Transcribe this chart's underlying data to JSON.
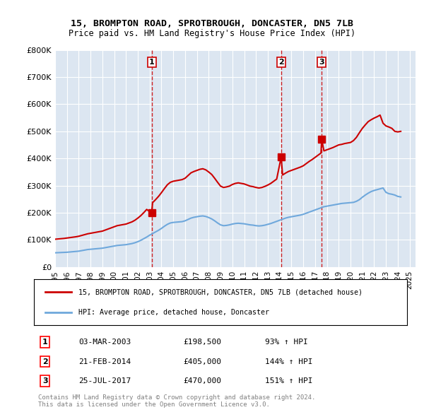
{
  "title_line1": "15, BROMPTON ROAD, SPROTBROUGH, DONCASTER, DN5 7LB",
  "title_line2": "Price paid vs. HM Land Registry's House Price Index (HPI)",
  "background_color": "#dce6f1",
  "plot_bg_color": "#dce6f1",
  "ylim": [
    0,
    800000
  ],
  "yticks": [
    0,
    100000,
    200000,
    300000,
    400000,
    500000,
    600000,
    700000,
    800000
  ],
  "ytick_labels": [
    "£0",
    "£100K",
    "£200K",
    "£300K",
    "£400K",
    "£500K",
    "£600K",
    "£700K",
    "£800K"
  ],
  "hpi_color": "#6fa8dc",
  "sale_color": "#cc0000",
  "dashed_line_color": "#cc0000",
  "transaction_markers": [
    {
      "label": "1",
      "date_str": "03-MAR-2003",
      "price": 198500,
      "pct": "93%",
      "x": 2003.17
    },
    {
      "label": "2",
      "date_str": "21-FEB-2014",
      "price": 405000,
      "pct": "144%",
      "x": 2014.13
    },
    {
      "label": "3",
      "date_str": "25-JUL-2017",
      "price": 470000,
      "pct": "151%",
      "x": 2017.56
    }
  ],
  "legend_line1": "15, BROMPTON ROAD, SPROTBROUGH, DONCASTER, DN5 7LB (detached house)",
  "legend_line2": "HPI: Average price, detached house, Doncaster",
  "footnote1": "Contains HM Land Registry data © Crown copyright and database right 2024.",
  "footnote2": "This data is licensed under the Open Government Licence v3.0.",
  "hpi_data_x": [
    1995,
    1995.25,
    1995.5,
    1995.75,
    1996,
    1996.25,
    1996.5,
    1996.75,
    1997,
    1997.25,
    1997.5,
    1997.75,
    1998,
    1998.25,
    1998.5,
    1998.75,
    1999,
    1999.25,
    1999.5,
    1999.75,
    2000,
    2000.25,
    2000.5,
    2000.75,
    2001,
    2001.25,
    2001.5,
    2001.75,
    2002,
    2002.25,
    2002.5,
    2002.75,
    2003,
    2003.25,
    2003.5,
    2003.75,
    2004,
    2004.25,
    2004.5,
    2004.75,
    2005,
    2005.25,
    2005.5,
    2005.75,
    2006,
    2006.25,
    2006.5,
    2006.75,
    2007,
    2007.25,
    2007.5,
    2007.75,
    2008,
    2008.25,
    2008.5,
    2008.75,
    2009,
    2009.25,
    2009.5,
    2009.75,
    2010,
    2010.25,
    2010.5,
    2010.75,
    2011,
    2011.25,
    2011.5,
    2011.75,
    2012,
    2012.25,
    2012.5,
    2012.75,
    2013,
    2013.25,
    2013.5,
    2013.75,
    2014,
    2014.25,
    2014.5,
    2014.75,
    2015,
    2015.25,
    2015.5,
    2015.75,
    2016,
    2016.25,
    2016.5,
    2016.75,
    2017,
    2017.25,
    2017.5,
    2017.75,
    2018,
    2018.25,
    2018.5,
    2018.75,
    2019,
    2019.25,
    2019.5,
    2019.75,
    2020,
    2020.25,
    2020.5,
    2020.75,
    2021,
    2021.25,
    2021.5,
    2021.75,
    2022,
    2022.25,
    2022.5,
    2022.75,
    2023,
    2023.25,
    2023.5,
    2023.75,
    2024,
    2024.25
  ],
  "hpi_data_y": [
    52000,
    52500,
    53000,
    53500,
    54000,
    55000,
    56000,
    57000,
    58000,
    60000,
    62000,
    64000,
    65000,
    66000,
    67000,
    68000,
    69000,
    71000,
    73000,
    75000,
    77000,
    79000,
    80000,
    81000,
    82000,
    84000,
    86000,
    89000,
    93000,
    98000,
    104000,
    110000,
    117000,
    123000,
    129000,
    135000,
    142000,
    150000,
    157000,
    162000,
    164000,
    165000,
    166000,
    167000,
    170000,
    175000,
    180000,
    183000,
    185000,
    187000,
    188000,
    186000,
    182000,
    177000,
    170000,
    162000,
    155000,
    152000,
    153000,
    155000,
    158000,
    160000,
    161000,
    160000,
    159000,
    157000,
    155000,
    154000,
    152000,
    151000,
    152000,
    154000,
    157000,
    160000,
    164000,
    168000,
    172000,
    176000,
    180000,
    183000,
    185000,
    187000,
    189000,
    191000,
    194000,
    198000,
    202000,
    206000,
    210000,
    214000,
    218000,
    222000,
    224000,
    226000,
    228000,
    230000,
    232000,
    234000,
    235000,
    236000,
    237000,
    238000,
    242000,
    248000,
    257000,
    265000,
    272000,
    278000,
    282000,
    285000,
    288000,
    291000,
    275000,
    270000,
    268000,
    265000,
    260000,
    258000
  ],
  "sale_data_x": [
    1995.0,
    1995.25,
    1995.5,
    1995.75,
    1996,
    1996.25,
    1996.5,
    1996.75,
    1997,
    1997.25,
    1997.5,
    1997.75,
    1998,
    1998.25,
    1998.5,
    1998.75,
    1999,
    1999.25,
    1999.5,
    1999.75,
    2000,
    2000.25,
    2000.5,
    2000.75,
    2001,
    2001.25,
    2001.5,
    2001.75,
    2002,
    2002.25,
    2002.5,
    2002.75,
    2003.17,
    2003.25,
    2003.5,
    2003.75,
    2004,
    2004.25,
    2004.5,
    2004.75,
    2005,
    2005.25,
    2005.5,
    2005.75,
    2006,
    2006.25,
    2006.5,
    2006.75,
    2007,
    2007.25,
    2007.5,
    2007.75,
    2008,
    2008.25,
    2008.5,
    2008.75,
    2009,
    2009.25,
    2009.5,
    2009.75,
    2010,
    2010.25,
    2010.5,
    2010.75,
    2011,
    2011.25,
    2011.5,
    2011.75,
    2012,
    2012.25,
    2012.5,
    2012.75,
    2013,
    2013.25,
    2013.5,
    2013.75,
    2014.13,
    2014.25,
    2014.5,
    2014.75,
    2015,
    2015.25,
    2015.5,
    2015.75,
    2016,
    2016.25,
    2016.5,
    2016.75,
    2017,
    2017.25,
    2017.5,
    2017.56,
    2017.75,
    2018,
    2018.25,
    2018.5,
    2018.75,
    2019,
    2019.25,
    2019.5,
    2019.75,
    2020,
    2020.25,
    2020.5,
    2020.75,
    2021,
    2021.25,
    2021.5,
    2021.75,
    2022,
    2022.25,
    2022.5,
    2022.75,
    2023,
    2023.25,
    2023.5,
    2023.75,
    2024,
    2024.25
  ],
  "sale_data_y": [
    102000,
    103000,
    104000,
    105000,
    106500,
    108000,
    109500,
    111000,
    113000,
    116000,
    119000,
    122000,
    124000,
    126000,
    128000,
    130000,
    132000,
    136000,
    140000,
    144000,
    148000,
    152000,
    154000,
    156000,
    158000,
    162000,
    166000,
    172000,
    180000,
    189000,
    200000,
    212000,
    198500,
    237000,
    248000,
    260000,
    274000,
    289000,
    303000,
    312000,
    316000,
    318000,
    320000,
    322000,
    327000,
    337000,
    347000,
    352000,
    356000,
    360000,
    362000,
    358000,
    350000,
    341000,
    327000,
    312000,
    298000,
    293000,
    295000,
    298000,
    304000,
    308000,
    310000,
    308000,
    306000,
    302000,
    298000,
    296000,
    293000,
    291000,
    293000,
    297000,
    302000,
    308000,
    316000,
    324000,
    405000,
    339000,
    346000,
    352000,
    356000,
    360000,
    364000,
    368000,
    373000,
    381000,
    389000,
    396000,
    404000,
    412000,
    420000,
    470000,
    428000,
    432000,
    436000,
    440000,
    445000,
    450000,
    452000,
    455000,
    457000,
    459000,
    466000,
    478000,
    495000,
    511000,
    524000,
    536000,
    543000,
    549000,
    554000,
    560000,
    530000,
    520000,
    516000,
    511000,
    500000,
    498000,
    500000
  ],
  "xmin": 1995,
  "xmax": 2025.5,
  "xticks": [
    1995,
    1996,
    1997,
    1998,
    1999,
    2000,
    2001,
    2002,
    2003,
    2004,
    2005,
    2006,
    2007,
    2008,
    2009,
    2010,
    2011,
    2012,
    2013,
    2014,
    2015,
    2016,
    2017,
    2018,
    2019,
    2020,
    2021,
    2022,
    2023,
    2024,
    2025
  ]
}
